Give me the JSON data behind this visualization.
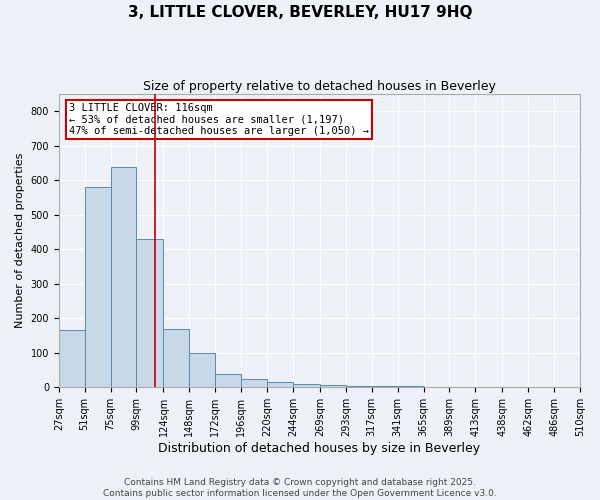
{
  "title": "3, LITTLE CLOVER, BEVERLEY, HU17 9HQ",
  "subtitle": "Size of property relative to detached houses in Beverley",
  "xlabel": "Distribution of detached houses by size in Beverley",
  "ylabel": "Number of detached properties",
  "bin_edges": [
    27,
    51,
    75,
    99,
    124,
    148,
    172,
    196,
    220,
    244,
    269,
    293,
    317,
    341,
    365,
    389,
    413,
    438,
    462,
    486,
    510
  ],
  "bar_heights": [
    165,
    580,
    640,
    430,
    170,
    100,
    40,
    25,
    15,
    10,
    8,
    5,
    4,
    3,
    2,
    1,
    1,
    0,
    0,
    1
  ],
  "bar_color": "#c8d8e8",
  "bar_edge_color": "#5a8ab0",
  "red_line_x": 116,
  "annotation_text": "3 LITTLE CLOVER: 116sqm\n← 53% of detached houses are smaller (1,197)\n47% of semi-detached houses are larger (1,050) →",
  "annotation_box_color": "#ffffff",
  "annotation_box_edge": "#cc0000",
  "red_line_color": "#bb0000",
  "ylim": [
    0,
    850
  ],
  "yticks": [
    0,
    100,
    200,
    300,
    400,
    500,
    600,
    700,
    800
  ],
  "footer_line1": "Contains HM Land Registry data © Crown copyright and database right 2025.",
  "footer_line2": "Contains public sector information licensed under the Open Government Licence v3.0.",
  "bg_color": "#eef2f8",
  "grid_color": "#ffffff",
  "title_fontsize": 11,
  "subtitle_fontsize": 9,
  "xlabel_fontsize": 9,
  "ylabel_fontsize": 8,
  "tick_label_fontsize": 7,
  "annotation_fontsize": 7.5,
  "footer_fontsize": 6.5
}
